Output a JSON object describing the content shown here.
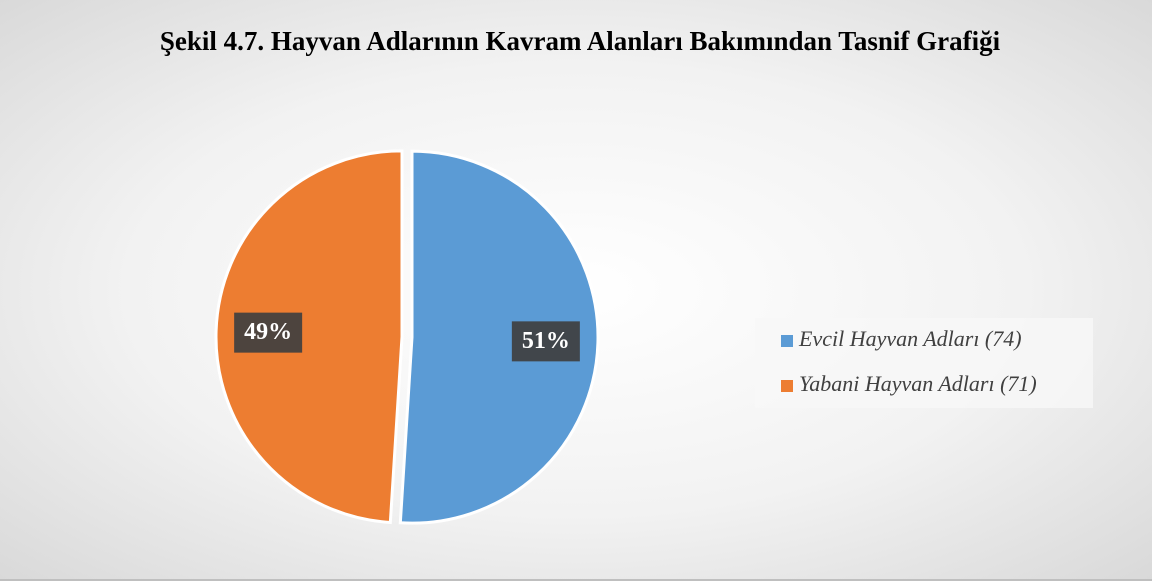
{
  "chart_data": {
    "type": "pie",
    "title": "Şekil 4.7. Hayvan Adlarının Kavram Alanları Bakımından Tasnif Grafiği",
    "categories": [
      "Evcil Hayvan Adları (74)",
      "Yabani Hayvan Adları (71)"
    ],
    "values": [
      51,
      49
    ],
    "value_labels": [
      "51%",
      "49%"
    ],
    "colors": [
      "#5b9bd5",
      "#ed7d31"
    ],
    "legend": "right"
  }
}
